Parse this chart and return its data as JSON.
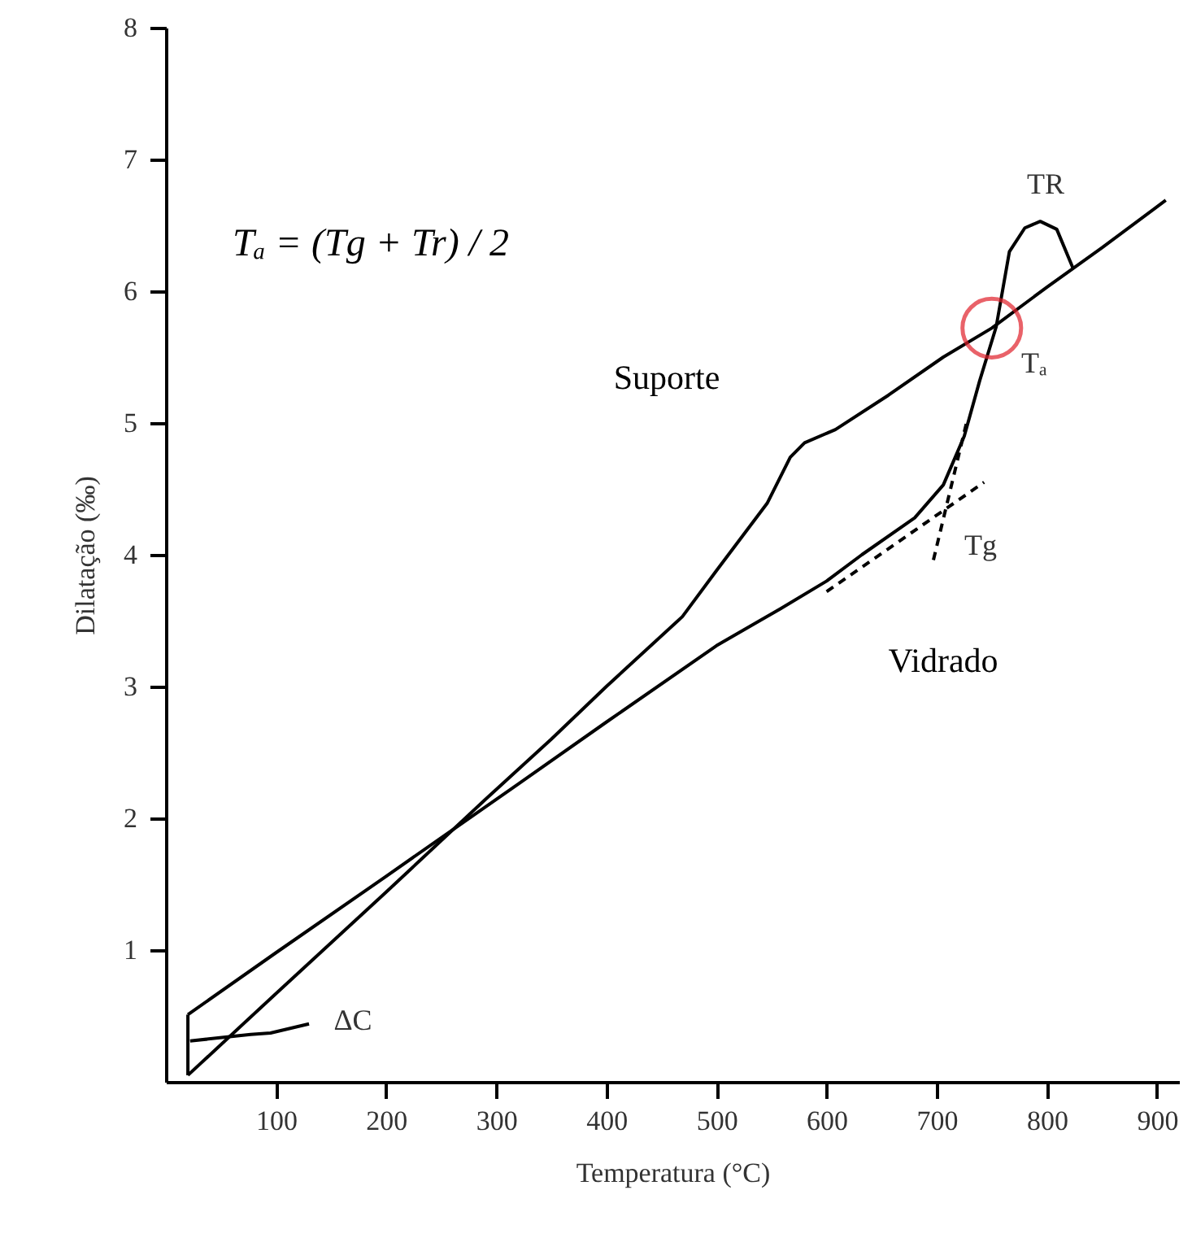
{
  "chart_data": {
    "type": "line",
    "xlabel": "Temperatura (°C)",
    "ylabel": "Dilatação (‰)",
    "xlim": [
      0,
      920
    ],
    "xticks": [
      100,
      200,
      300,
      400,
      500,
      600,
      700,
      800,
      900
    ],
    "ylim": [
      0,
      8
    ],
    "yticks": [
      1,
      2,
      3,
      4,
      5,
      6,
      7,
      8
    ],
    "grid": false,
    "series": [
      {
        "name": "Suporte",
        "color": "#000000",
        "x": [
          20,
          100,
          200,
          291,
          350,
          400,
          469,
          500,
          546,
          567,
          580,
          608,
          656,
          706,
          750,
          800,
          850,
          908
        ],
        "values": [
          0.05,
          0.67,
          1.44,
          2.15,
          2.6,
          3.0,
          3.53,
          3.88,
          4.39,
          4.74,
          4.85,
          4.95,
          5.21,
          5.5,
          5.72,
          6.03,
          6.33,
          6.69
        ]
      },
      {
        "name": "Vidrado",
        "color": "#000000",
        "x": [
          20,
          100,
          200,
          320,
          400,
          500,
          558,
          600,
          632,
          680,
          706,
          725,
          739,
          754,
          766,
          780,
          794,
          809,
          824
        ],
        "values": [
          0.51,
          0.98,
          1.56,
          2.26,
          2.73,
          3.31,
          3.59,
          3.8,
          4.0,
          4.28,
          4.53,
          4.9,
          5.32,
          5.73,
          6.3,
          6.48,
          6.53,
          6.47,
          6.17
        ]
      },
      {
        "color": "#000000",
        "x": [
          20,
          20
        ],
        "values": [
          0.05,
          0.51
        ]
      },
      {
        "color": "#000000",
        "x": [
          22,
          77,
          95,
          130
        ],
        "values": [
          0.31,
          0.36,
          0.37,
          0.44
        ]
      },
      {
        "color": "#000000",
        "line_style": "dashed",
        "x": [
          600,
          743
        ],
        "values": [
          3.72,
          4.55
        ]
      },
      {
        "color": "#000000",
        "line_style": "dashed",
        "x": [
          697,
          727
        ],
        "values": [
          3.96,
          5.0
        ]
      },
      {
        "type": "scatter",
        "marker": "circle",
        "color": "#e0202a",
        "x": [
          750
        ],
        "values": [
          5.72
        ]
      }
    ],
    "annotations": [
      "Tₐ = (Tg + Tr) / 2",
      "Tg",
      "Tₐ",
      "TR",
      "ΔC"
    ]
  }
}
